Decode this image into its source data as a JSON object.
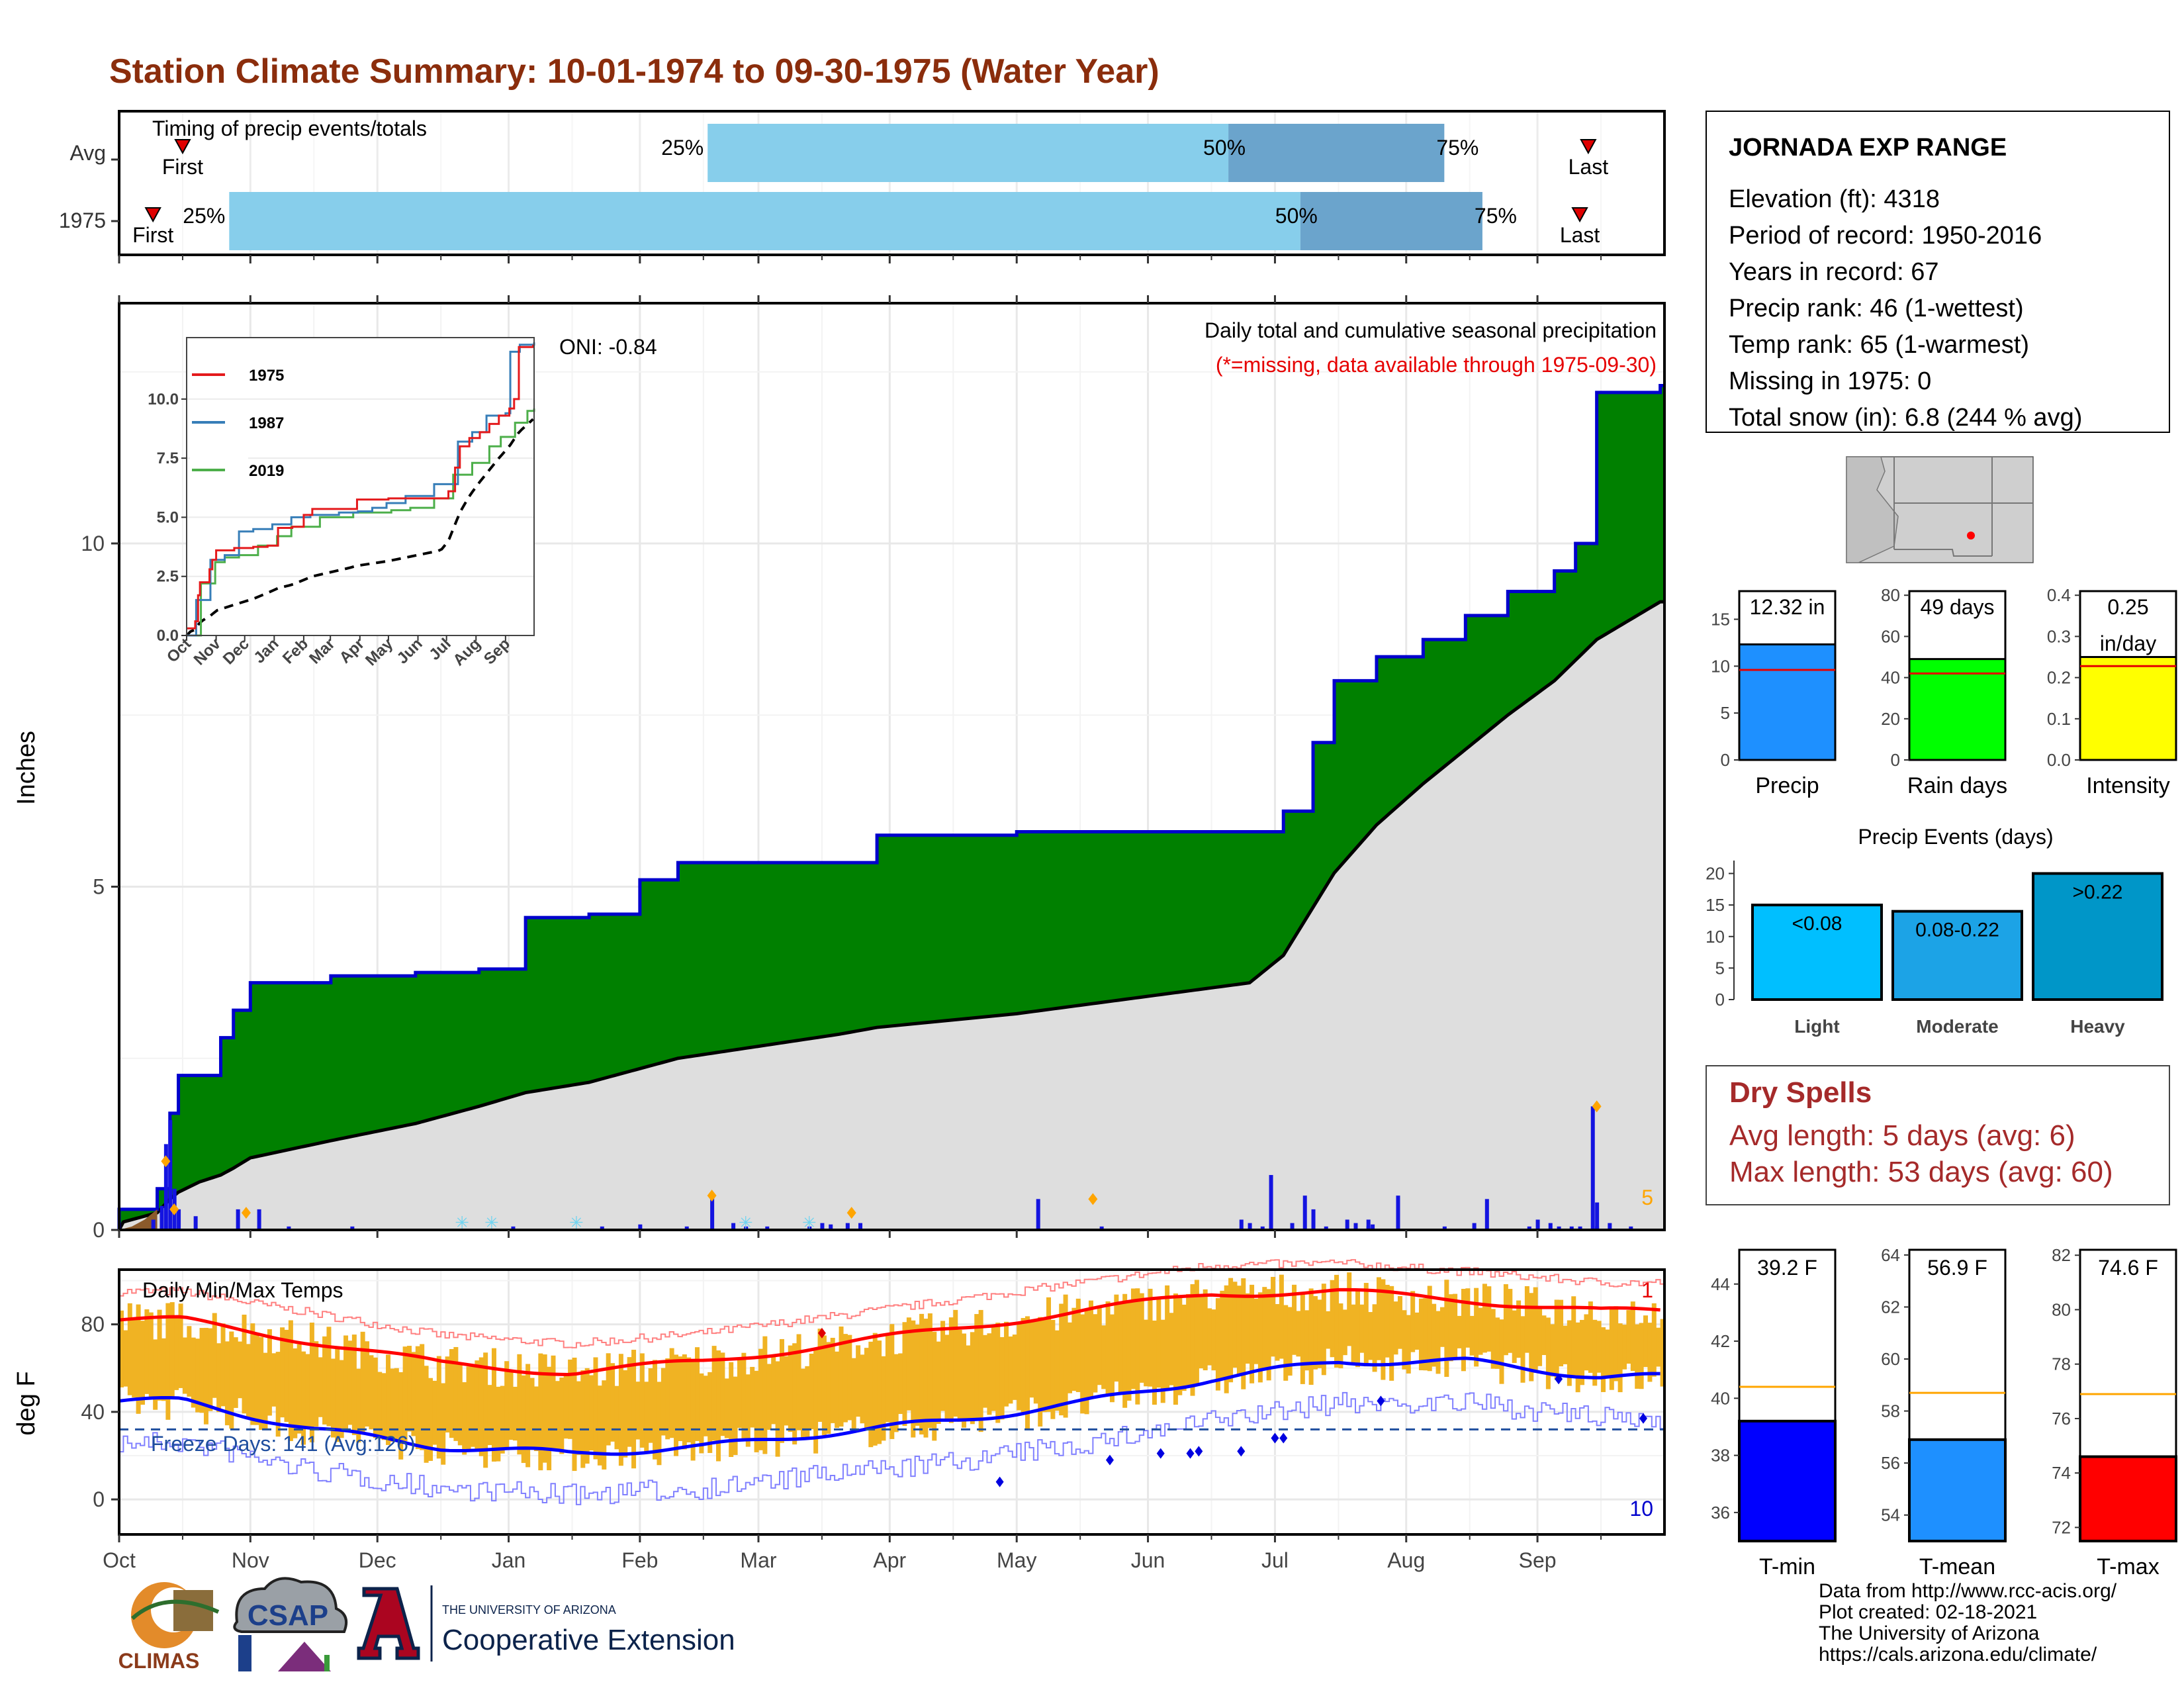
{
  "title": "Station Climate Summary: 10-01-1974 to 09-30-1975 (Water Year)",
  "colors": {
    "title": "#8b2d0c",
    "precip_green": "#008000",
    "precip_line": "#0000cd",
    "avg_gray": "#dedede",
    "timing_light": "#87ceeb",
    "timing_dark": "#6ba4cc",
    "tmax_line": "#ff0000",
    "tmin_line": "#0000ff",
    "temp_bar": "#f0b323",
    "light_bar": "#00bfff",
    "moderate_bar": "#1ca3e6",
    "heavy_bar": "#0096c8",
    "avg_line_temp": "#ffa500",
    "avg_line_precip": "#e60000",
    "dry_spell_text": "#a52a2a"
  },
  "timing": {
    "label": "Timing of precip events/totals",
    "rows": [
      {
        "name": "Avg",
        "first": "First",
        "last": "Last",
        "p25": "25%",
        "p50": "50%",
        "p75": "75%",
        "first_doy": 15,
        "p25_doy": 139,
        "p50_doy": 262,
        "p75_doy": 313,
        "last_doy": 347
      },
      {
        "name": "1975",
        "first": "First",
        "last": "Last",
        "p25": "25%",
        "p50": "50%",
        "p75": "75%",
        "first_doy": 8,
        "p25_doy": 26,
        "p50_doy": 279,
        "p75_doy": 322,
        "last_doy": 345
      }
    ]
  },
  "main": {
    "ylabel": "Inches",
    "oni": "ONI: -0.84",
    "legend_title": "Daily total and cumulative seasonal precipitation",
    "missing_note": "(*=missing, data available through 1975-09-30)",
    "extreme_count": "5"
  },
  "inset": {
    "series": [
      {
        "name": "1975",
        "color": "#e41a1c"
      },
      {
        "name": "1987",
        "color": "#377eb8"
      },
      {
        "name": "2019",
        "color": "#4daf4a"
      }
    ],
    "yticks": [
      "0.0",
      "2.5",
      "5.0",
      "7.5",
      "10.0"
    ],
    "xticks": [
      "Oct",
      "Nov",
      "Dec",
      "Jan",
      "Feb",
      "Mar",
      "Apr",
      "May",
      "Jun",
      "Jul",
      "Aug",
      "Sep"
    ]
  },
  "temps": {
    "label": "Daily Min/Max Temps",
    "ylabel": "deg F",
    "freeze": "Freeze Days: 141 (Avg:126)",
    "count_max": "1",
    "count_min": "10"
  },
  "months": [
    "Oct",
    "Nov",
    "Dec",
    "Jan",
    "Feb",
    "Mar",
    "Apr",
    "May",
    "Jun",
    "Jul",
    "Aug",
    "Sep"
  ],
  "station": {
    "name": "JORNADA EXP RANGE",
    "lines": [
      "Elevation (ft): 4318",
      "Period of record: 1950-2016",
      "Years in record: 67",
      "Precip rank: 46 (1-wettest)",
      "Temp rank: 65 (1-warmest)",
      "Missing in 1975: 0",
      "Total snow (in): 6.8 (244 % avg)"
    ]
  },
  "summary_bars": [
    {
      "label": "Precip",
      "value_text": "12.32 in",
      "value": 12.32,
      "avg": 9.6,
      "max": 18,
      "ticks": [
        "0",
        "5",
        "10",
        "15"
      ],
      "tickvals": [
        0,
        5,
        10,
        15
      ]
    },
    {
      "label": "Rain days",
      "value_text": "49 days",
      "value": 49,
      "avg": 42,
      "max": 82,
      "ticks": [
        "0",
        "20",
        "40",
        "60",
        "80"
      ],
      "tickvals": [
        0,
        20,
        40,
        60,
        80
      ]
    },
    {
      "label": "Intensity",
      "value_text": "0.25",
      "value_text2": "in/day",
      "value": 0.25,
      "avg": 0.228,
      "max": 0.41,
      "ticks": [
        "0.0",
        "0.1",
        "0.2",
        "0.3",
        "0.4"
      ],
      "tickvals": [
        0,
        0.1,
        0.2,
        0.3,
        0.4
      ]
    }
  ],
  "events": {
    "title": "Precip Events (days)",
    "bars": [
      {
        "cat": "Light",
        "label": "<0.08",
        "value": 15
      },
      {
        "cat": "Moderate",
        "label": "0.08-0.22",
        "value": 14
      },
      {
        "cat": "Heavy",
        "label": ">0.22",
        "value": 20
      }
    ],
    "ticks": [
      "0",
      "5",
      "10",
      "15",
      "20"
    ]
  },
  "dry": {
    "title": "Dry Spells",
    "avg": "Avg length: 5 days (avg: 6)",
    "max": "Max length: 53 days (avg: 60)"
  },
  "temp_bars": [
    {
      "label": "T-min",
      "value_text": "39.2 F",
      "value": 39.2,
      "avg": 40.4,
      "min": 35,
      "max": 45.2,
      "ticks": [
        36,
        38,
        40,
        42,
        44
      ]
    },
    {
      "label": "T-mean",
      "value_text": "56.9 F",
      "value": 56.9,
      "avg": 58.7,
      "min": 53,
      "max": 64.2,
      "ticks": [
        54,
        56,
        58,
        60,
        62,
        64
      ]
    },
    {
      "label": "T-max",
      "value_text": "74.6 F",
      "value": 74.6,
      "avg": 76.9,
      "min": 71.5,
      "max": 82.2,
      "ticks": [
        72,
        74,
        76,
        78,
        80,
        82
      ]
    }
  ],
  "logos": {
    "climas": "CLIMAS",
    "csap": "CSAP",
    "univ": "THE UNIVERSITY OF ARIZONA",
    "coop": "Cooperative Extension"
  },
  "credits": [
    "Data from http://www.rcc-acis.org/",
    "Plot created: 02-18-2021",
    "The University of Arizona",
    "https://cals.arizona.edu/climate/"
  ],
  "chart_data": [
    {
      "type": "bar",
      "title": "Timing of precip events/totals",
      "categories": [
        "Avg",
        "1975"
      ],
      "series": [
        {
          "name": "25%",
          "values": [
            "Feb 17",
            "Oct 27"
          ]
        },
        {
          "name": "50%",
          "values": [
            "Jun 20",
            "Jul 7"
          ]
        },
        {
          "name": "75%",
          "values": [
            "Aug 10",
            "Aug 19"
          ]
        }
      ]
    },
    {
      "type": "area",
      "title": "Daily total and cumulative seasonal precipitation",
      "ylabel": "Inches",
      "ylim": [
        0,
        13.5
      ],
      "x": [
        "1974-10-01",
        "1974-10-10",
        "1974-10-13",
        "1974-10-15",
        "1974-10-20",
        "1974-10-25",
        "1974-10-28",
        "1974-11-01",
        "1974-11-20",
        "1974-12-10",
        "1974-12-25",
        "1975-01-05",
        "1975-01-20",
        "1975-02-01",
        "1975-02-10",
        "1975-03-20",
        "1975-03-29",
        "1975-05-01",
        "1975-06-25",
        "1975-07-03",
        "1975-07-10",
        "1975-07-15",
        "1975-07-25",
        "1975-08-05",
        "1975-08-15",
        "1975-08-25",
        "1975-09-05",
        "1975-09-10",
        "1975-09-15",
        "1975-09-30"
      ],
      "series": [
        {
          "name": "1975",
          "values": [
            0.3,
            0.6,
            1.7,
            2.25,
            2.25,
            2.8,
            3.2,
            3.6,
            3.7,
            3.75,
            3.8,
            4.55,
            4.6,
            5.1,
            5.35,
            5.35,
            5.75,
            5.8,
            5.8,
            6.1,
            7.1,
            8.0,
            8.35,
            8.6,
            8.95,
            9.3,
            9.6,
            10.0,
            12.2,
            12.3
          ]
        },
        {
          "name": "Avg",
          "values": [
            0.1,
            0.25,
            0.45,
            0.55,
            0.7,
            0.8,
            0.9,
            1.05,
            1.3,
            1.55,
            1.8,
            2.0,
            2.15,
            2.35,
            2.5,
            2.85,
            2.95,
            3.15,
            3.6,
            4.0,
            4.7,
            5.2,
            5.9,
            6.5,
            7.0,
            7.5,
            8.0,
            8.3,
            8.6,
            9.15
          ]
        }
      ]
    },
    {
      "type": "line",
      "title": "Daily Min/Max Temps",
      "ylabel": "deg F",
      "x": [
        "Oct",
        "Nov",
        "Dec",
        "Jan",
        "Feb",
        "Mar",
        "Apr",
        "May",
        "Jun",
        "Jul",
        "Aug",
        "Sep"
      ],
      "series": [
        {
          "name": "Avg max",
          "values": [
            82,
            72,
            62,
            58,
            63,
            70,
            78,
            86,
            94,
            95,
            91,
            86
          ]
        },
        {
          "name": "Avg min",
          "values": [
            45,
            32,
            24,
            21,
            24,
            30,
            36,
            44,
            55,
            63,
            63,
            56
          ]
        }
      ]
    },
    {
      "type": "bar",
      "title": "Precip Events (days)",
      "categories": [
        "Light",
        "Moderate",
        "Heavy"
      ],
      "values": [
        15,
        14,
        20
      ],
      "ylim": [
        0,
        20
      ]
    },
    {
      "type": "bar",
      "categories": [
        "Precip",
        "Rain days",
        "Intensity"
      ],
      "values": [
        12.32,
        49,
        0.25
      ]
    },
    {
      "type": "bar",
      "categories": [
        "T-min",
        "T-mean",
        "T-max"
      ],
      "values": [
        39.2,
        56.9,
        74.6
      ]
    }
  ]
}
